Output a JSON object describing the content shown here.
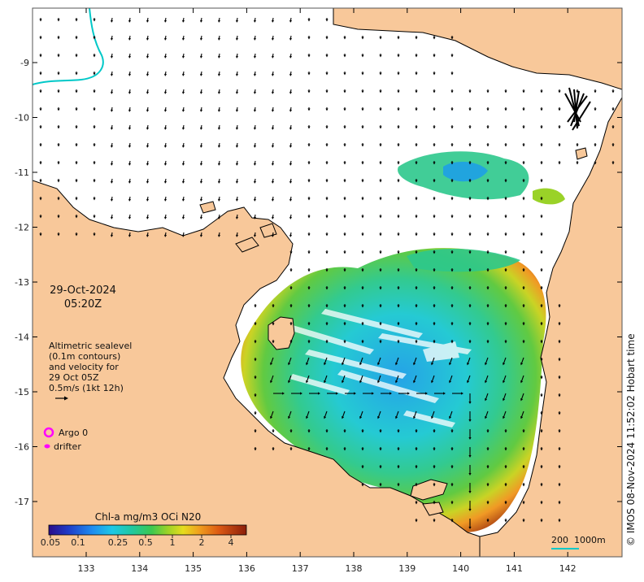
{
  "date": "29-Oct-2024",
  "time": "05:20Z",
  "legend_text": {
    "line1": "Altimetric sealevel",
    "line2": "(0.1m contours)",
    "line3": "and velocity for",
    "line4": "29 Oct 05Z",
    "line5": "0.5m/s (1kt 12h)"
  },
  "markers": {
    "argo_label": "Argo 0",
    "drifter_label": "drifter"
  },
  "colorbar": {
    "title": "Chl-a mg/m3 OCi N20",
    "ticks": [
      "0.05",
      "0.1",
      "0.25",
      "0.5",
      "1",
      "2",
      "4"
    ]
  },
  "scale_bar": {
    "label_a": "200",
    "label_b": "1000m"
  },
  "credit": "© IMOS 08-Nov-2024 11:52:02 Hobart time",
  "axes": {
    "lon_ticks": [
      "133",
      "134",
      "135",
      "136",
      "137",
      "138",
      "139",
      "140",
      "141",
      "142"
    ],
    "lat_ticks": [
      "-9",
      "-10",
      "-11",
      "-12",
      "-13",
      "-14",
      "-15",
      "-16",
      "-17"
    ]
  },
  "colors": {
    "land": "#f8c89a",
    "ocean_clear": "#ffffff",
    "bathy_contour": "#00c8c8",
    "argo": "#ff00ff",
    "drifter": "#ff00ff"
  }
}
